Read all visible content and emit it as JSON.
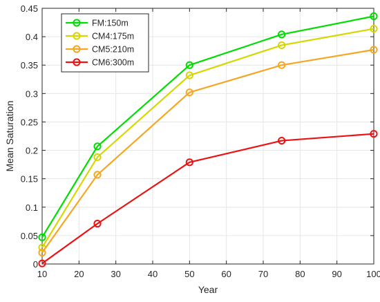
{
  "chart_data": {
    "type": "line",
    "xlabel": "Year",
    "ylabel": "Mean Saturation",
    "xlim": [
      10,
      100
    ],
    "ylim": [
      0,
      0.45
    ],
    "xticks": [
      10,
      20,
      30,
      40,
      50,
      60,
      70,
      80,
      90,
      100
    ],
    "yticks": [
      0,
      0.05,
      0.1,
      0.15,
      0.2,
      0.25,
      0.3,
      0.35,
      0.4,
      0.45
    ],
    "xtick_labels": [
      "10",
      "20",
      "30",
      "40",
      "50",
      "60",
      "70",
      "80",
      "90",
      "100"
    ],
    "ytick_labels": [
      "0",
      "0.05",
      "0.1",
      "0.15",
      "0.2",
      "0.25",
      "0.3",
      "0.35",
      "0.4",
      "0.45"
    ],
    "grid": true,
    "legend_position": "top-left",
    "x": [
      10,
      25,
      50,
      75,
      100
    ],
    "series": [
      {
        "name": "FM:150m",
        "color": "#00dd00",
        "values": [
          0.047,
          0.207,
          0.35,
          0.404,
          0.436
        ]
      },
      {
        "name": "CM4:175m",
        "color": "#d6d600",
        "values": [
          0.029,
          0.188,
          0.332,
          0.385,
          0.414
        ]
      },
      {
        "name": "CM5:210m",
        "color": "#f5a623",
        "values": [
          0.02,
          0.157,
          0.302,
          0.35,
          0.377
        ]
      },
      {
        "name": "CM6:300m",
        "color": "#ee1111",
        "values": [
          0.001,
          0.071,
          0.179,
          0.217,
          0.229
        ]
      }
    ]
  }
}
